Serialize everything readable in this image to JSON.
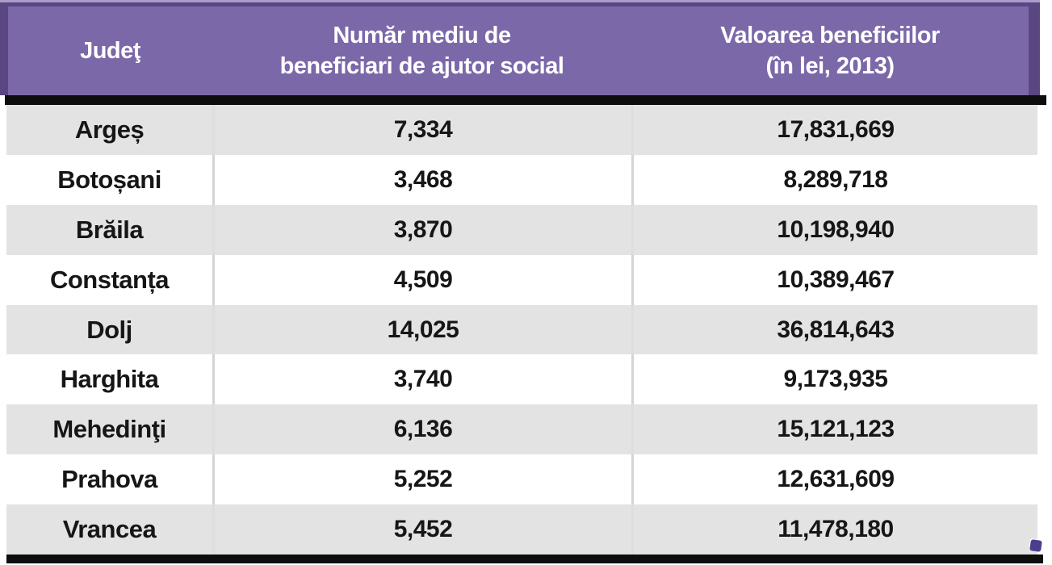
{
  "table": {
    "columns": [
      {
        "id": "county",
        "label": "Judeţ"
      },
      {
        "id": "beneficiaries",
        "label": "Număr mediu de beneficiari de ajutor social",
        "line1": "Număr mediu de",
        "line2": "beneficiari de ajutor social"
      },
      {
        "id": "value",
        "label": "Valoarea beneficiilor (în lei, 2013)",
        "line1": "Valoarea beneficiilor",
        "line2": "(în lei, 2013)"
      }
    ],
    "rows": [
      {
        "county": "Argeș",
        "beneficiaries": "7,334",
        "value": "17,831,669"
      },
      {
        "county": "Botoșani",
        "beneficiaries": "3,468",
        "value": "8,289,718"
      },
      {
        "county": "Brăila",
        "beneficiaries": "3,870",
        "value": "10,198,940"
      },
      {
        "county": "Constanța",
        "beneficiaries": "4,509",
        "value": "10,389,467"
      },
      {
        "county": "Dolj",
        "beneficiaries": "14,025",
        "value": "36,814,643"
      },
      {
        "county": "Harghita",
        "beneficiaries": "3,740",
        "value": "9,173,935"
      },
      {
        "county": "Mehedinţi",
        "beneficiaries": "6,136",
        "value": "15,121,123"
      },
      {
        "county": "Prahova",
        "beneficiaries": "5,252",
        "value": "12,631,609"
      },
      {
        "county": "Vrancea",
        "beneficiaries": "5,452",
        "value": "11,478,180"
      }
    ]
  },
  "colors": {
    "header_bg": "#7b68a8",
    "header_border": "#5a4681",
    "header_highlight": "#a99cca",
    "header_text": "#ffffff",
    "row_gray": "#e3e3e3",
    "row_white": "#ffffff",
    "body_text": "#161616",
    "thick_rule": "#0d0d0d",
    "fill_handle": "#4a3f8f"
  },
  "chart_data": {
    "type": "table",
    "title": "",
    "columns": [
      "Judeţ",
      "Număr mediu de beneficiari de ajutor social",
      "Valoarea beneficiilor (în lei, 2013)"
    ],
    "rows": [
      [
        "Argeș",
        7334,
        17831669
      ],
      [
        "Botoșani",
        3468,
        8289718
      ],
      [
        "Brăila",
        3870,
        10198940
      ],
      [
        "Constanța",
        4509,
        10389467
      ],
      [
        "Dolj",
        14025,
        36814643
      ],
      [
        "Harghita",
        3740,
        9173935
      ],
      [
        "Mehedinţi",
        6136,
        15121123
      ],
      [
        "Prahova",
        5252,
        12631609
      ],
      [
        "Vrancea",
        5452,
        11478180
      ]
    ],
    "notes": "alternating gray/white rows, purple header band, thick black rules above and below body, Excel fill handle bottom-right"
  }
}
